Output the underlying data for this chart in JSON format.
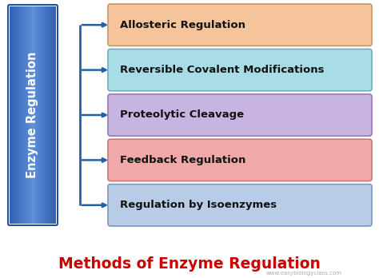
{
  "title": "Methods of Enzyme Regulation",
  "title_color": "#cc0000",
  "title_fontsize": 13.5,
  "background_color": "#ffffff",
  "left_box": {
    "text": "Enzyme Regulation",
    "color_top": "#5b8dd9",
    "color_bottom": "#2a5faa",
    "text_color": "#ffffff",
    "fontsize": 10.5
  },
  "items": [
    {
      "label": "Allosteric Regulation",
      "color": "#f5c49a",
      "border": "#c8956a"
    },
    {
      "label": "Reversible Covalent Modifications",
      "color": "#a8dde8",
      "border": "#6ab0be"
    },
    {
      "label": "Proteolytic Cleavage",
      "color": "#c8b4e0",
      "border": "#9878b8"
    },
    {
      "label": "Feedback Regulation",
      "color": "#f0a8a8",
      "border": "#c87878"
    },
    {
      "label": "Regulation by Isoenzymes",
      "color": "#b8cce8",
      "border": "#7898c0"
    }
  ],
  "watermark": "www.easybiologyclass.com",
  "connector_color": "#2060a8",
  "item_fontsize": 9.5
}
